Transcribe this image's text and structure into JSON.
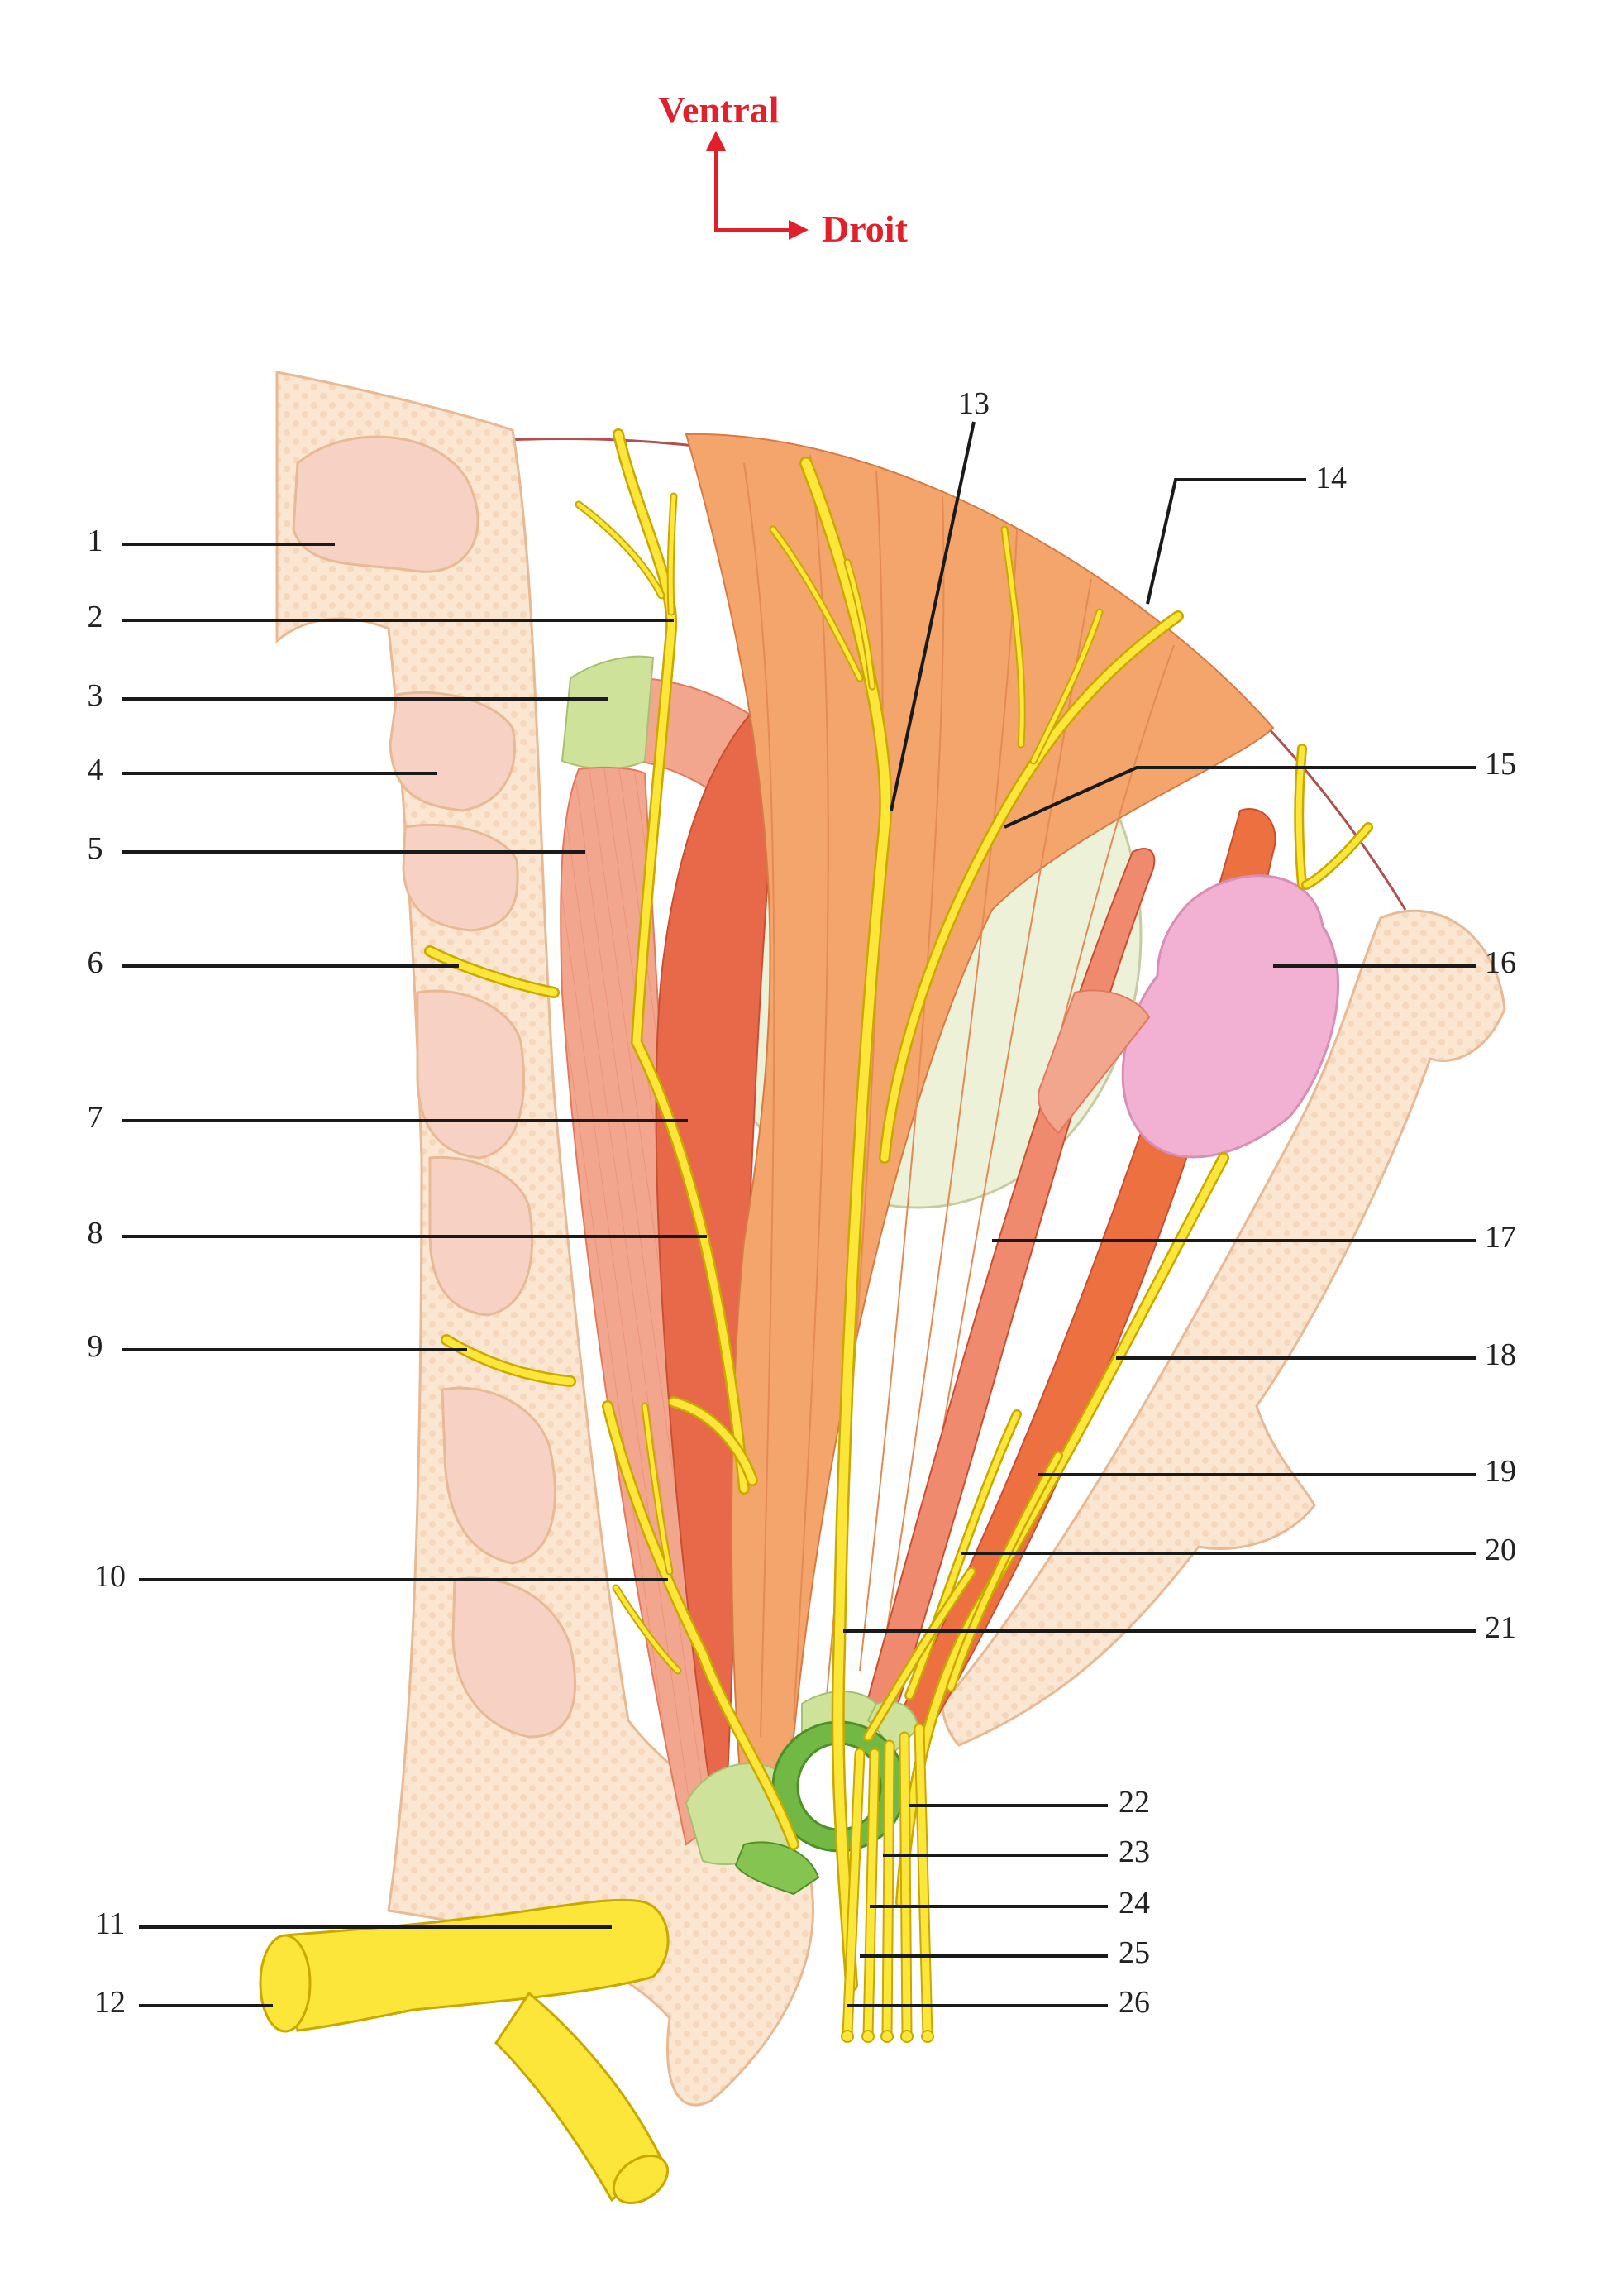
{
  "orientation": {
    "up_label": "Ventral",
    "right_label": "Droit",
    "color": "#e0202a"
  },
  "colors": {
    "bone": "#fbe6d2",
    "bone_edge": "#e8b995",
    "bone_cavity": "#f7d2c4",
    "muscle_light": "#f3a68e",
    "muscle_mid": "#ef8a6e",
    "muscle_dark": "#e8694a",
    "muscle_orange": "#f4a56c",
    "tendon_green": "#cfe29a",
    "globe": "#edf1d8",
    "gland": "#f2b0d2",
    "nerve": "#fde63a",
    "nerve_edge": "#c9a800",
    "ring": "#72b845",
    "leader": "#1a1a1a"
  },
  "labels": [
    "1",
    "2",
    "3",
    "4",
    "5",
    "6",
    "7",
    "8",
    "9",
    "10",
    "11",
    "12",
    "13",
    "14",
    "15",
    "16",
    "17",
    "18",
    "19",
    "20",
    "21",
    "22",
    "23",
    "24",
    "25",
    "26"
  ]
}
